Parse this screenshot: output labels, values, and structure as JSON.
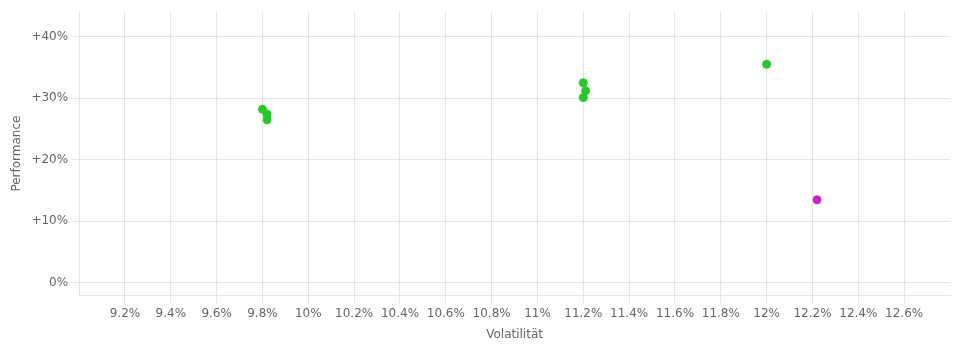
{
  "chart_data": {
    "type": "scatter",
    "xlabel": "Volatilität",
    "ylabel": "Performance",
    "xlim": [
      9.0,
      12.8
    ],
    "ylim": [
      -2,
      44
    ],
    "xticks": [
      {
        "value": 9.2,
        "label": "9.2%"
      },
      {
        "value": 9.4,
        "label": "9.4%"
      },
      {
        "value": 9.6,
        "label": "9.6%"
      },
      {
        "value": 9.8,
        "label": "9.8%"
      },
      {
        "value": 10.0,
        "label": "10%"
      },
      {
        "value": 10.2,
        "label": "10.2%"
      },
      {
        "value": 10.4,
        "label": "10.4%"
      },
      {
        "value": 10.6,
        "label": "10.6%"
      },
      {
        "value": 10.8,
        "label": "10.8%"
      },
      {
        "value": 11.0,
        "label": "11%"
      },
      {
        "value": 11.2,
        "label": "11.2%"
      },
      {
        "value": 11.4,
        "label": "11.4%"
      },
      {
        "value": 11.6,
        "label": "11.6%"
      },
      {
        "value": 11.8,
        "label": "11.8%"
      },
      {
        "value": 12.0,
        "label": "12%"
      },
      {
        "value": 12.2,
        "label": "12.2%"
      },
      {
        "value": 12.4,
        "label": "12.4%"
      },
      {
        "value": 12.6,
        "label": "12.6%"
      }
    ],
    "yticks": [
      {
        "value": 0,
        "label": "0%"
      },
      {
        "value": 10,
        "label": "+10%"
      },
      {
        "value": 20,
        "label": "+20%"
      },
      {
        "value": 30,
        "label": "+30%"
      },
      {
        "value": 40,
        "label": "+40%"
      }
    ],
    "grid": true,
    "series": [
      {
        "color": "#22cc22",
        "x": [
          9.8,
          9.82,
          9.82,
          11.2,
          11.21,
          11.2,
          12.0
        ],
        "values": [
          28.2,
          27.4,
          26.5,
          32.5,
          31.2,
          30.1,
          35.5
        ]
      },
      {
        "color": "#cc22cc",
        "x": [
          12.22
        ],
        "values": [
          13.5
        ]
      }
    ]
  }
}
